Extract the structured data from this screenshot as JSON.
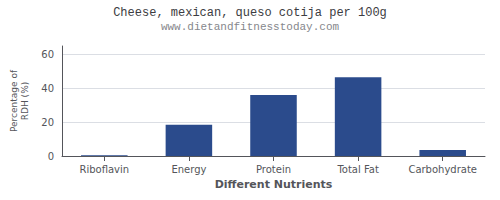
{
  "chart_data": {
    "type": "bar",
    "title": "Cheese, mexican, queso cotija per 100g",
    "subtitle": "www.dietandfitnesstoday.com",
    "xlabel": "Different Nutrients",
    "ylabel": "Percentage of\nRDH (%)",
    "categories": [
      "Riboflavin",
      "Energy",
      "Protein",
      "Total Fat",
      "Carbohydrate"
    ],
    "values": [
      0.5,
      18.5,
      36.0,
      46.5,
      3.5
    ],
    "color": "#2b4b8c",
    "ylim": [
      0,
      65
    ],
    "yticks": [
      0,
      20,
      40,
      60
    ],
    "grid": true
  }
}
